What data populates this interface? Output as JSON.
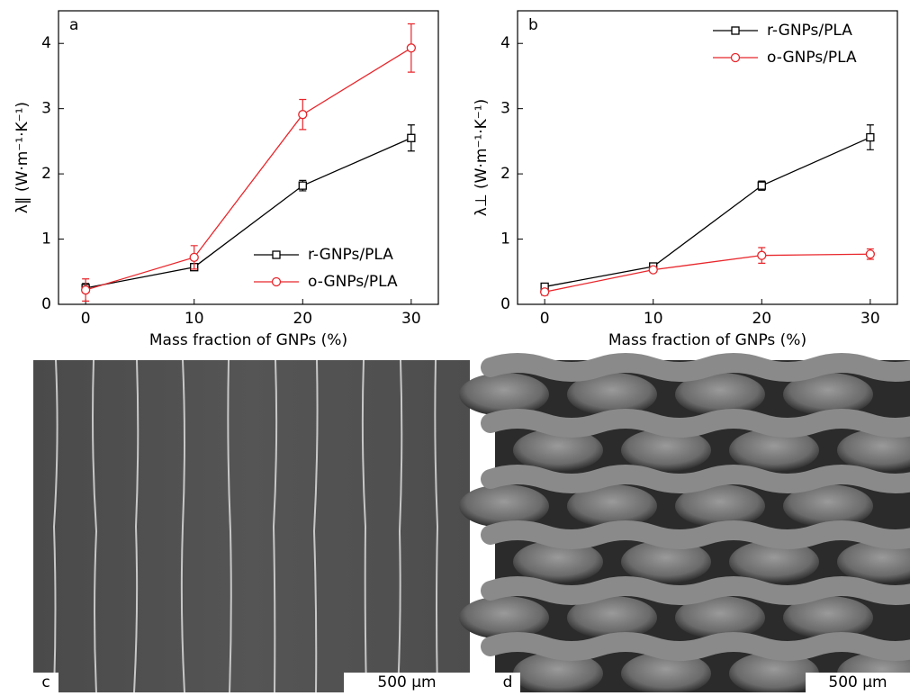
{
  "chart_data": [
    {
      "type": "line",
      "panel": "a",
      "ylabel": "λ‖ (W·m⁻¹·K⁻¹)",
      "xlabel": "Mass fraction of  GNPs (%)",
      "x": [
        0,
        10,
        20,
        30
      ],
      "xlim": [
        -2.5,
        32.5
      ],
      "xticks": [
        0,
        10,
        20,
        30
      ],
      "ylim": [
        0,
        4.5
      ],
      "yticks": [
        0,
        1,
        2,
        3,
        4
      ],
      "legend": "lower right",
      "series": [
        {
          "name": "r-GNPs/PLA",
          "color": "#000000",
          "marker": "square",
          "values": [
            0.25,
            0.57,
            1.82,
            2.55
          ],
          "errors": [
            0.07,
            0.05,
            0.08,
            0.2
          ]
        },
        {
          "name": "o-GNPs/PLA",
          "color": "#e8262b",
          "marker": "circle",
          "values": [
            0.22,
            0.72,
            2.91,
            3.93
          ],
          "errors": [
            0.17,
            0.18,
            0.23,
            0.37
          ]
        }
      ]
    },
    {
      "type": "line",
      "panel": "b",
      "ylabel": "λ⊥ (W·m⁻¹·K⁻¹)",
      "xlabel": "Mass fraction of  GNPs (%)",
      "x": [
        0,
        10,
        20,
        30
      ],
      "xlim": [
        -2.5,
        32.5
      ],
      "xticks": [
        0,
        10,
        20,
        30
      ],
      "ylim": [
        0,
        4.5
      ],
      "yticks": [
        0,
        1,
        2,
        3,
        4
      ],
      "legend": "upper right",
      "series": [
        {
          "name": "r-GNPs/PLA",
          "color": "#000000",
          "marker": "square",
          "values": [
            0.27,
            0.58,
            1.82,
            2.56
          ],
          "errors": [
            0.05,
            0.04,
            0.07,
            0.19
          ]
        },
        {
          "name": "o-GNPs/PLA",
          "color": "#e8262b",
          "marker": "circle",
          "values": [
            0.19,
            0.53,
            0.75,
            0.77
          ],
          "errors": [
            0.05,
            0.04,
            0.12,
            0.08
          ]
        }
      ]
    }
  ],
  "images": [
    {
      "label": "c",
      "scale_bar": "500 μm"
    },
    {
      "label": "d",
      "scale_bar": "500 μm"
    }
  ]
}
